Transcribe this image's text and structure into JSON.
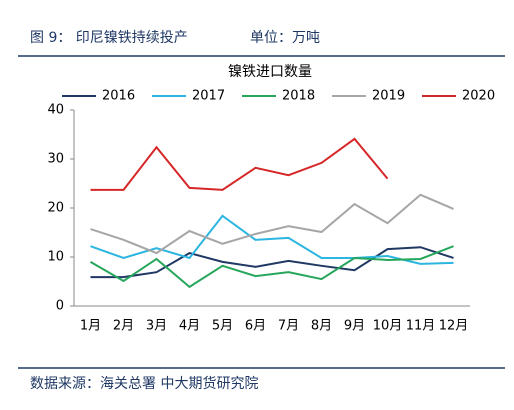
{
  "chart_data": {
    "type": "line",
    "figure_caption": "图 9： 印尼镍铁持续投产",
    "unit": "单位：万吨",
    "title": "镍铁进口数量",
    "source": "数据来源：海关总署 中大期货研究院",
    "categories": [
      "1月",
      "2月",
      "3月",
      "4月",
      "5月",
      "6月",
      "7月",
      "8月",
      "9月",
      "10月",
      "11月",
      "12月"
    ],
    "series": [
      {
        "name": "2016",
        "color": "#1f3864",
        "values": [
          5.9,
          5.9,
          6.9,
          10.8,
          9,
          8,
          9.2,
          8.2,
          7.3,
          11.6,
          12,
          9.8
        ]
      },
      {
        "name": "2017",
        "color": "#2bb5e0",
        "values": [
          12.2,
          9.8,
          11.8,
          9.8,
          18.4,
          13.5,
          13.9,
          9.8,
          9.8,
          10.2,
          8.6,
          8.8
        ]
      },
      {
        "name": "2018",
        "color": "#26a65b",
        "values": [
          9,
          5.1,
          9.6,
          3.9,
          8.2,
          6.1,
          6.9,
          5.5,
          9.8,
          9.4,
          9.6,
          12.2
        ]
      },
      {
        "name": "2019",
        "color": "#a6a6a6",
        "values": [
          15.7,
          13.5,
          10.8,
          15.3,
          12.7,
          14.7,
          16.3,
          15.1,
          20.8,
          16.9,
          22.7,
          19.8
        ]
      },
      {
        "name": "2020",
        "color": "#d62728",
        "values": [
          23.7,
          23.7,
          32.4,
          24.1,
          23.7,
          28.2,
          26.7,
          29.2,
          34.1,
          26,
          null,
          null
        ]
      }
    ],
    "ylim": [
      0,
      40
    ],
    "yticks": [
      0,
      10,
      20,
      30,
      40
    ],
    "grid": false,
    "legend": "top"
  }
}
